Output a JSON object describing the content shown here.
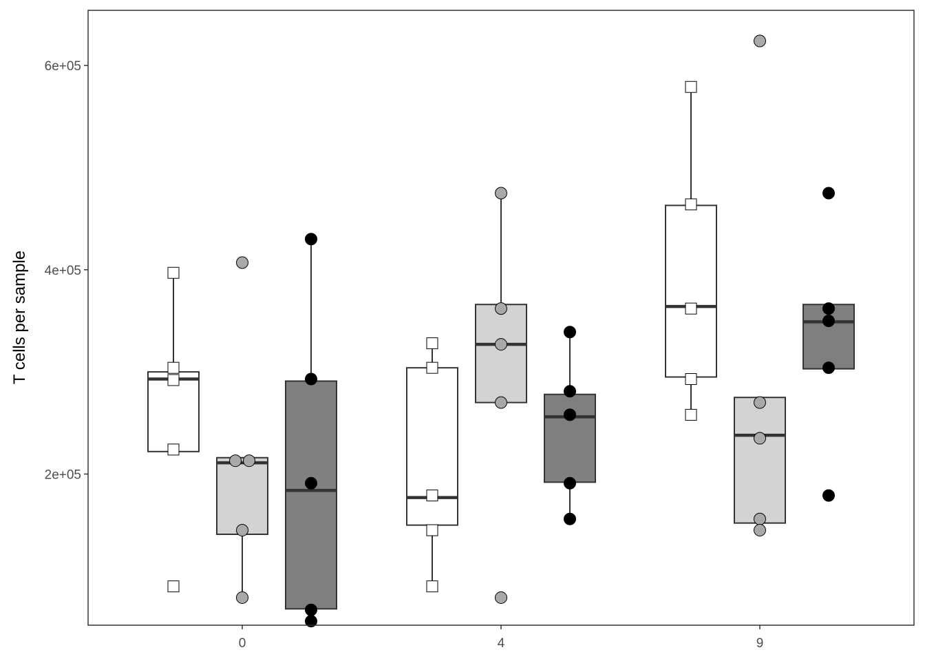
{
  "chart_data": {
    "type": "boxplot",
    "xlabel": "",
    "ylabel": "T cells per sample",
    "ylim": [
      52000,
      654000
    ],
    "y_ticks": [
      200000,
      400000,
      600000
    ],
    "y_tick_labels": [
      "2e+05",
      "4e+05",
      "6e+05"
    ],
    "categories": [
      "0",
      "4",
      "9"
    ],
    "grid": false,
    "legend": "none",
    "series": [
      {
        "fill": "#ffffff",
        "point_shape": "square",
        "point_fill": "#ffffff",
        "boxes": [
          {
            "category": "0",
            "lower_whisker": 222000,
            "q1": 222000,
            "median": 293000,
            "q3": 300000,
            "upper_whisker": 397000,
            "points": [
              397000,
              304000,
              292000,
              224000,
              90000
            ]
          },
          {
            "category": "4",
            "lower_whisker": 90000,
            "q1": 150000,
            "median": 177000,
            "q3": 304000,
            "upper_whisker": 328000,
            "points": [
              328000,
              304000,
              179000,
              145000,
              90000
            ]
          },
          {
            "category": "9",
            "lower_whisker": 258000,
            "q1": 295000,
            "median": 364000,
            "q3": 463000,
            "upper_whisker": 579000,
            "points": [
              579000,
              464000,
              362000,
              293000,
              258000
            ]
          }
        ]
      },
      {
        "fill": "#d3d3d3",
        "point_shape": "circle",
        "point_fill": "#a9a9a9",
        "boxes": [
          {
            "category": "0",
            "lower_whisker": 79000,
            "q1": 141000,
            "median": 211000,
            "q3": 216000,
            "upper_whisker": 216000,
            "points": [
              407000,
              213000,
              213000,
              145000,
              79000
            ]
          },
          {
            "category": "4",
            "lower_whisker": 270000,
            "q1": 270000,
            "median": 327000,
            "q3": 366000,
            "upper_whisker": 475000,
            "points": [
              475000,
              362000,
              327000,
              270000,
              79000
            ]
          },
          {
            "category": "9",
            "lower_whisker": 152000,
            "q1": 152000,
            "median": 238000,
            "q3": 275000,
            "upper_whisker": 275000,
            "points": [
              624000,
              270000,
              235000,
              156000,
              145000
            ]
          }
        ]
      },
      {
        "fill": "#7f7f7f",
        "point_shape": "circle",
        "point_fill": "#000000",
        "boxes": [
          {
            "category": "0",
            "lower_whisker": 68000,
            "q1": 68000,
            "median": 184000,
            "q3": 291000,
            "upper_whisker": 430000,
            "points": [
              430000,
              293000,
              191000,
              67000,
              56000
            ]
          },
          {
            "category": "4",
            "lower_whisker": 156000,
            "q1": 192000,
            "median": 256000,
            "q3": 278000,
            "upper_whisker": 339000,
            "points": [
              339000,
              281000,
              258000,
              191000,
              156000
            ]
          },
          {
            "category": "9",
            "lower_whisker": 303000,
            "q1": 303000,
            "median": 349000,
            "q3": 366000,
            "upper_whisker": 366000,
            "points": [
              475000,
              362000,
              350000,
              304000,
              179000
            ]
          }
        ]
      }
    ]
  }
}
